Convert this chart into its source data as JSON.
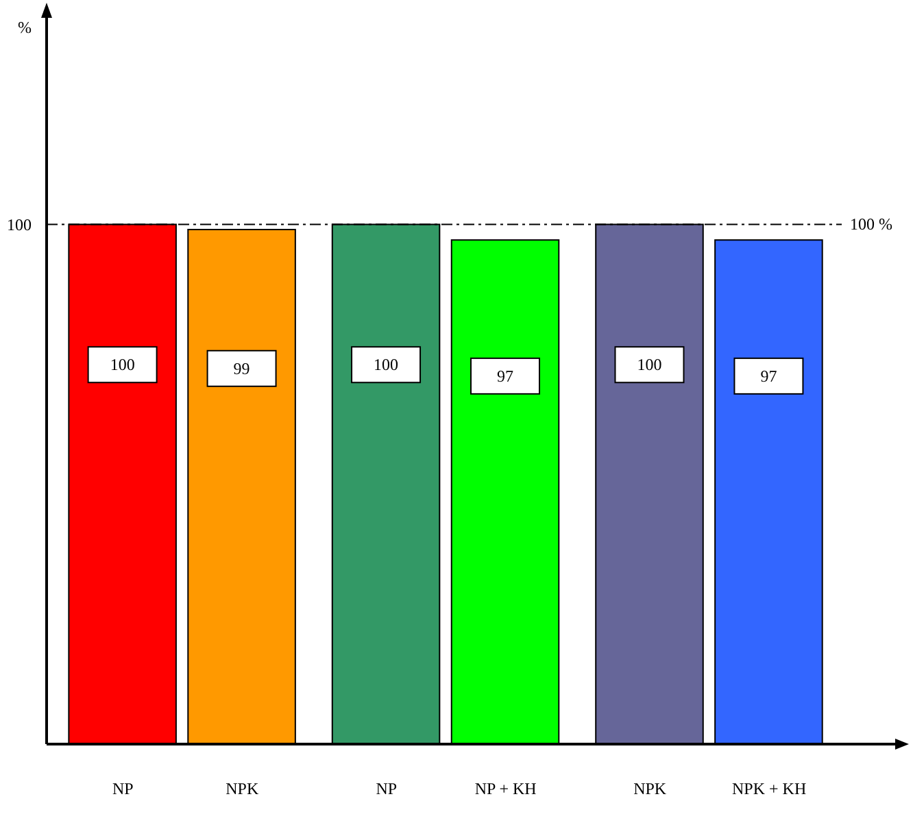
{
  "chart_data": {
    "type": "bar",
    "ylabel": "%",
    "categories": [
      "NP",
      "NPK",
      "NP",
      "NP + KH",
      "NPK",
      "NPK + KH"
    ],
    "values": [
      100,
      99,
      100,
      97,
      100,
      97
    ],
    "colors": [
      "#ff0000",
      "#ff9900",
      "#339966",
      "#00ff00",
      "#666699",
      "#3366ff"
    ],
    "ylim": [
      0,
      140
    ],
    "yticks": [
      100
    ],
    "data_labels": true,
    "ref_lines": [
      {
        "axis": "y",
        "value": 100,
        "label": "100 %",
        "line_style": "dashdot",
        "color": "#000000"
      }
    ]
  }
}
